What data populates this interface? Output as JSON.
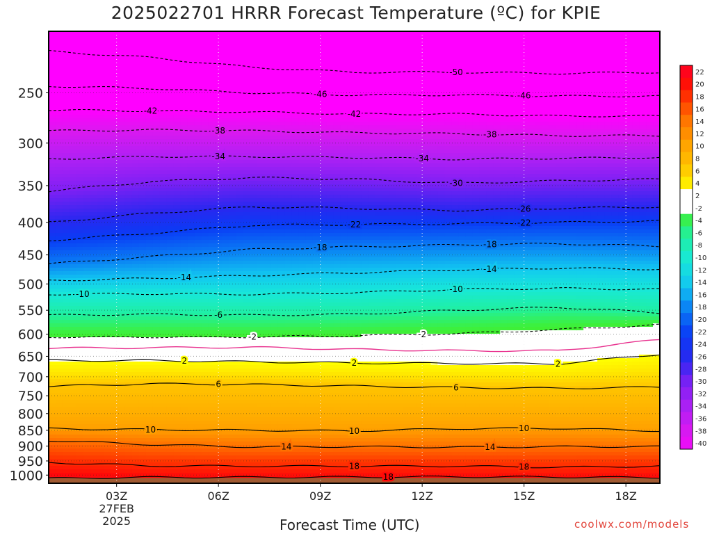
{
  "title": "2025022701 HRRR Forecast Temperature (ºC) for KPIE",
  "credit": "coolwx.com/models",
  "colors": {
    "freezing_line": "#e8318e",
    "ground": "#a05a32",
    "frame": "#000000"
  },
  "chart_data": {
    "type": "heatmap",
    "xlabel": "Forecast Time (UTC)",
    "ylabel": "",
    "x_axis": {
      "range_hours": [
        1,
        19
      ],
      "ticks": [
        {
          "hour": 3,
          "label": "03Z",
          "sub": [
            "27FEB",
            "2025"
          ]
        },
        {
          "hour": 6,
          "label": "06Z",
          "sub": []
        },
        {
          "hour": 9,
          "label": "09Z",
          "sub": []
        },
        {
          "hour": 12,
          "label": "12Z",
          "sub": []
        },
        {
          "hour": 15,
          "label": "15Z",
          "sub": []
        },
        {
          "hour": 18,
          "label": "18Z",
          "sub": []
        }
      ]
    },
    "y_axis": {
      "scale": "log",
      "reversed": true,
      "range_hpa": [
        200,
        1030
      ],
      "ticks": [
        250,
        300,
        350,
        400,
        450,
        500,
        550,
        600,
        650,
        700,
        750,
        800,
        850,
        900,
        950,
        1000
      ]
    },
    "grid": true,
    "colorbar": {
      "placement": "right",
      "labels": [
        "22",
        "20",
        "18",
        "16",
        "14",
        "12",
        "10",
        "8",
        "6",
        "4",
        "2",
        "-2",
        "-4",
        "-6",
        "-8",
        "-10",
        "-12",
        "-14",
        "-16",
        "-18",
        "-20",
        "-22",
        "-24",
        "-26",
        "-28",
        "-30",
        "-32",
        "-34",
        "-36",
        "-38",
        "-40"
      ]
    },
    "surface_pressure_hpa": 1010,
    "temperature_profile": {
      "hours": [
        1,
        4,
        7,
        10,
        13,
        16,
        19
      ],
      "levels": [
        {
          "temp": 18,
          "p": [
            955,
            967,
            968,
            968,
            968,
            972,
            968
          ]
        },
        {
          "temp": 14,
          "p": [
            882,
            895,
            903,
            902,
            904,
            902,
            902
          ]
        },
        {
          "temp": 10,
          "p": [
            845,
            848,
            850,
            852,
            845,
            844,
            852
          ]
        },
        {
          "temp": 6,
          "p": [
            725,
            718,
            720,
            724,
            728,
            730,
            727
          ]
        },
        {
          "temp": 2,
          "p": [
            660,
            660,
            663,
            666,
            667,
            668,
            645
          ]
        },
        {
          "temp": 0,
          "p": [
            631,
            630,
            629,
            634,
            637,
            637,
            612
          ]
        },
        {
          "temp": -2,
          "p": [
            606,
            606,
            606,
            603,
            599,
            590,
            580
          ]
        },
        {
          "temp": -6,
          "p": [
            560,
            558,
            560,
            558,
            550,
            544,
            555
          ]
        },
        {
          "temp": -10,
          "p": [
            519,
            518,
            519,
            516,
            510,
            508,
            510
          ]
        },
        {
          "temp": -14,
          "p": [
            494,
            490,
            485,
            480,
            475,
            472,
            474
          ]
        },
        {
          "temp": -18,
          "p": [
            465,
            453,
            441,
            437,
            434,
            432,
            436
          ]
        },
        {
          "temp": -22,
          "p": [
            427,
            416,
            404,
            403,
            402,
            400,
            398
          ]
        },
        {
          "temp": -26,
          "p": [
            400,
            387,
            378,
            380,
            383,
            380,
            378
          ]
        },
        {
          "temp": -30,
          "p": [
            357,
            345,
            340,
            342,
            347,
            344,
            342
          ]
        },
        {
          "temp": -34,
          "p": [
            318,
            315,
            315,
            316,
            318,
            317,
            316
          ]
        },
        {
          "temp": -38,
          "p": [
            287,
            286,
            287,
            289,
            290,
            292,
            292
          ]
        },
        {
          "temp": -42,
          "p": [
            266,
            267,
            268,
            270,
            270,
            272,
            272
          ]
        },
        {
          "temp": -46,
          "p": [
            244,
            246,
            250,
            252,
            252,
            253,
            253
          ]
        },
        {
          "temp": -50,
          "p": [
            215,
            220,
            228,
            232,
            232,
            233,
            232
          ]
        }
      ]
    },
    "contours": [
      {
        "label": "18",
        "dashed": false,
        "hours": [
          1,
          4,
          7,
          10,
          13,
          16,
          19
        ],
        "p": [
          955,
          967,
          968,
          968,
          968,
          972,
          968
        ],
        "label_hours": [
          10,
          15
        ]
      },
      {
        "label": "18",
        "dashed": false,
        "hours": [
          1,
          4,
          7,
          10,
          13,
          16,
          19
        ],
        "p": [
          1012,
          1008,
          1008,
          1007,
          1006,
          1007,
          1009
        ],
        "label_hours": [
          11
        ]
      },
      {
        "label": "14",
        "dashed": false,
        "hours": [
          1,
          4,
          7,
          10,
          13,
          16,
          19
        ],
        "p": [
          882,
          895,
          903,
          902,
          904,
          902,
          902
        ],
        "label_hours": [
          8,
          14
        ]
      },
      {
        "label": "10",
        "dashed": false,
        "hours": [
          1,
          4,
          7,
          10,
          13,
          16,
          19
        ],
        "p": [
          845,
          848,
          850,
          852,
          845,
          844,
          852
        ],
        "label_hours": [
          4,
          10,
          15
        ]
      },
      {
        "label": "6",
        "dashed": false,
        "hours": [
          1,
          4,
          7,
          10,
          13,
          16,
          19
        ],
        "p": [
          725,
          718,
          720,
          724,
          728,
          730,
          727
        ],
        "label_hours": [
          6,
          13
        ]
      },
      {
        "label": "2",
        "dashed": false,
        "hours": [
          1,
          4,
          7,
          10,
          13,
          16,
          19
        ],
        "p": [
          660,
          660,
          663,
          666,
          667,
          668,
          645
        ],
        "label_hours": [
          5,
          10,
          16
        ]
      },
      {
        "label": "",
        "dashed": false,
        "freezing": true,
        "hours": [
          1,
          4,
          7,
          10,
          13,
          16,
          19
        ],
        "p": [
          631,
          630,
          629,
          634,
          637,
          637,
          612
        ],
        "label_hours": []
      },
      {
        "label": "-2",
        "dashed": true,
        "hours": [
          1,
          4,
          7,
          10,
          13,
          16,
          19
        ],
        "p": [
          606,
          606,
          606,
          603,
          599,
          590,
          580
        ],
        "label_hours": [
          7,
          12
        ]
      },
      {
        "label": "-6",
        "dashed": true,
        "hours": [
          1,
          4,
          7,
          10,
          13,
          16,
          19
        ],
        "p": [
          560,
          558,
          560,
          558,
          550,
          544,
          555
        ],
        "label_hours": [
          6
        ]
      },
      {
        "label": "-10",
        "dashed": true,
        "hours": [
          1,
          4,
          7,
          10,
          13,
          16,
          19
        ],
        "p": [
          519,
          518,
          519,
          516,
          510,
          508,
          510
        ],
        "label_hours": [
          2,
          13
        ]
      },
      {
        "label": "-14",
        "dashed": true,
        "hours": [
          1,
          4,
          7,
          10,
          13,
          16,
          19
        ],
        "p": [
          494,
          490,
          485,
          480,
          475,
          472,
          474
        ],
        "label_hours": [
          5,
          14
        ]
      },
      {
        "label": "-18",
        "dashed": true,
        "hours": [
          1,
          4,
          7,
          10,
          13,
          16,
          19
        ],
        "p": [
          465,
          453,
          441,
          437,
          434,
          432,
          436
        ],
        "label_hours": [
          9,
          14
        ]
      },
      {
        "label": "-22",
        "dashed": true,
        "hours": [
          1,
          4,
          7,
          10,
          13,
          16,
          19
        ],
        "p": [
          427,
          416,
          404,
          403,
          402,
          400,
          398
        ],
        "label_hours": [
          10,
          15
        ]
      },
      {
        "label": "-26",
        "dashed": true,
        "hours": [
          1,
          4,
          7,
          10,
          13,
          16,
          19
        ],
        "p": [
          400,
          387,
          378,
          380,
          383,
          380,
          378
        ],
        "label_hours": [
          15
        ]
      },
      {
        "label": "-30",
        "dashed": true,
        "hours": [
          1,
          4,
          7,
          10,
          13,
          16,
          19
        ],
        "p": [
          357,
          345,
          340,
          342,
          347,
          344,
          342
        ],
        "label_hours": [
          13
        ]
      },
      {
        "label": "-34",
        "dashed": true,
        "hours": [
          1,
          4,
          7,
          10,
          13,
          16,
          19
        ],
        "p": [
          318,
          315,
          315,
          316,
          318,
          317,
          316
        ],
        "label_hours": [
          6,
          12
        ]
      },
      {
        "label": "-38",
        "dashed": true,
        "hours": [
          1,
          4,
          7,
          10,
          13,
          16,
          19
        ],
        "p": [
          287,
          286,
          287,
          289,
          290,
          292,
          292
        ],
        "label_hours": [
          6,
          14
        ]
      },
      {
        "label": "-42",
        "dashed": true,
        "hours": [
          1,
          4,
          7,
          10,
          13,
          16,
          19
        ],
        "p": [
          266,
          267,
          268,
          270,
          270,
          272,
          272
        ],
        "label_hours": [
          4,
          10
        ]
      },
      {
        "label": "-46",
        "dashed": true,
        "hours": [
          1,
          4,
          7,
          10,
          13,
          16,
          19
        ],
        "p": [
          244,
          246,
          250,
          252,
          252,
          253,
          253
        ],
        "label_hours": [
          9,
          15
        ]
      },
      {
        "label": "-50",
        "dashed": true,
        "hours": [
          1,
          4,
          7,
          10,
          13,
          16,
          19
        ],
        "p": [
          215,
          220,
          228,
          232,
          232,
          233,
          232
        ],
        "label_hours": [
          13
        ]
      }
    ]
  }
}
